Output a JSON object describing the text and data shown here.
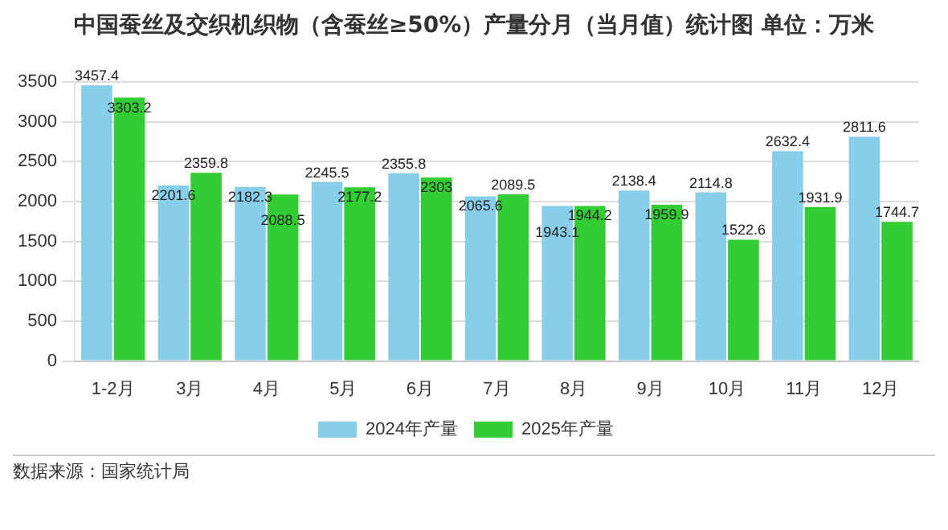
{
  "chart_data": {
    "type": "bar",
    "title": "中国蚕丝及交织机织物（含蚕丝≥50%）产量分月（当月值）统计图 单位：万米",
    "categories": [
      "1-2月",
      "3月",
      "4月",
      "5月",
      "6月",
      "7月",
      "8月",
      "9月",
      "10月",
      "11月",
      "12月"
    ],
    "series": [
      {
        "name": "2024年产量",
        "color": "#87ceeb",
        "values": [
          3457.4,
          2201.6,
          2182.3,
          2245.5,
          2355.8,
          2065.6,
          1943.1,
          2138.4,
          2114.8,
          2632.4,
          2811.6
        ]
      },
      {
        "name": "2025年产量",
        "color": "#32cd32",
        "values": [
          3303.2,
          2359.8,
          2088.5,
          2177.2,
          2303,
          2089.5,
          1944.2,
          1959.9,
          1522.6,
          1931.9,
          1744.7
        ]
      }
    ],
    "ylim": [
      0,
      3500
    ],
    "yticks": [
      0,
      500,
      1000,
      1500,
      2000,
      2500,
      3000,
      3500
    ],
    "grid": "y",
    "legend": "bottom",
    "data_labels": true,
    "annotations": [
      "数据来源：国家统计局"
    ]
  }
}
